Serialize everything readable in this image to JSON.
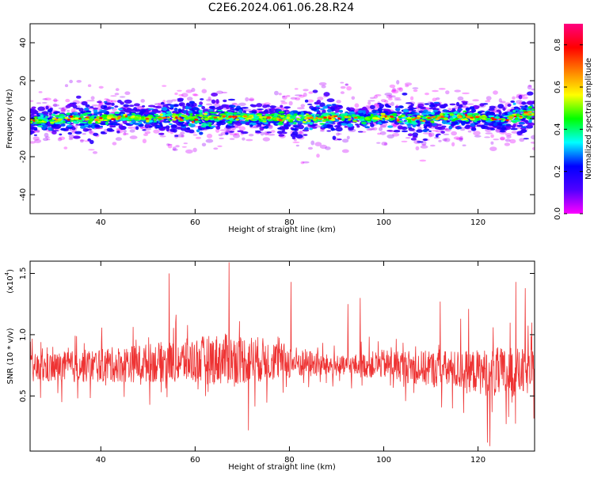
{
  "title": "C2E6.2024.061.06.28.R24",
  "chart_data": [
    {
      "type": "heatmap",
      "xlabel": "Height of straight line (km)",
      "ylabel": "Frequency (Hz)",
      "xlim": [
        25,
        132
      ],
      "ylim": [
        -50,
        50
      ],
      "xticks": [
        40,
        60,
        80,
        100,
        120
      ],
      "yticks": [
        -40,
        -20,
        0,
        20,
        40
      ],
      "colorbar": {
        "label": "Normalized spectral amplitude",
        "range": [
          0,
          0.9
        ],
        "ticks": [
          0.0,
          0.2,
          0.4,
          0.6,
          0.8
        ],
        "colormap": [
          "#ff00ff",
          "#5000ff",
          "#0000ff",
          "#00ffff",
          "#00ff00",
          "#ffff00",
          "#ff8000",
          "#ff0000",
          "#ff0080"
        ]
      },
      "ridge_center_hz": [
        [
          25,
          -1
        ],
        [
          30,
          -1
        ],
        [
          35,
          0
        ],
        [
          40,
          0
        ],
        [
          45,
          1
        ],
        [
          50,
          0
        ],
        [
          55,
          1
        ],
        [
          60,
          0
        ],
        [
          65,
          1
        ],
        [
          70,
          1
        ],
        [
          75,
          0
        ],
        [
          80,
          0
        ],
        [
          85,
          0
        ],
        [
          90,
          1
        ],
        [
          95,
          0
        ],
        [
          100,
          1
        ],
        [
          105,
          0
        ],
        [
          110,
          0
        ],
        [
          115,
          1
        ],
        [
          120,
          1
        ],
        [
          125,
          -1
        ],
        [
          128,
          1
        ],
        [
          132,
          4
        ]
      ]
    },
    {
      "type": "line",
      "xlabel": "Height of straight line (km)",
      "ylabel": "SNR (10 * v/v)",
      "yscale_label": "(x10",
      "yscale_exp": "4",
      "xlim": [
        25,
        132
      ],
      "ylim": [
        0.05,
        1.6
      ],
      "xticks": [
        40,
        60,
        80,
        100,
        120
      ],
      "yticks": [
        0.5,
        1.0,
        1.5
      ],
      "ytick_labels": [
        "0.5",
        "1.0",
        "1.5"
      ],
      "series": [
        {
          "color": "#ee3333",
          "mean_envelope": [
            [
              25,
              0.72,
              0.12
            ],
            [
              40,
              0.75,
              0.14
            ],
            [
              55,
              0.78,
              0.17
            ],
            [
              65,
              0.8,
              0.21
            ],
            [
              72,
              0.8,
              0.2
            ],
            [
              80,
              0.78,
              0.14
            ],
            [
              90,
              0.74,
              0.08
            ],
            [
              100,
              0.76,
              0.12
            ],
            [
              110,
              0.72,
              0.15
            ],
            [
              120,
              0.7,
              0.18
            ],
            [
              125,
              0.68,
              0.22
            ],
            [
              132,
              0.7,
              0.18
            ]
          ],
          "peaks": [
            [
              54.5,
              1.5
            ],
            [
              67.2,
              1.59
            ],
            [
              80.3,
              1.43
            ],
            [
              92.4,
              1.25
            ],
            [
              95.0,
              1.3
            ],
            [
              112.0,
              1.27
            ],
            [
              116.3,
              1.13
            ],
            [
              118.0,
              1.21
            ],
            [
              123.2,
              1.06
            ],
            [
              128.0,
              1.43
            ],
            [
              130.0,
              1.38
            ],
            [
              71.3,
              0.22
            ],
            [
              122.0,
              0.12
            ],
            [
              122.5,
              0.09
            ],
            [
              126.0,
              0.27
            ]
          ]
        }
      ]
    }
  ]
}
